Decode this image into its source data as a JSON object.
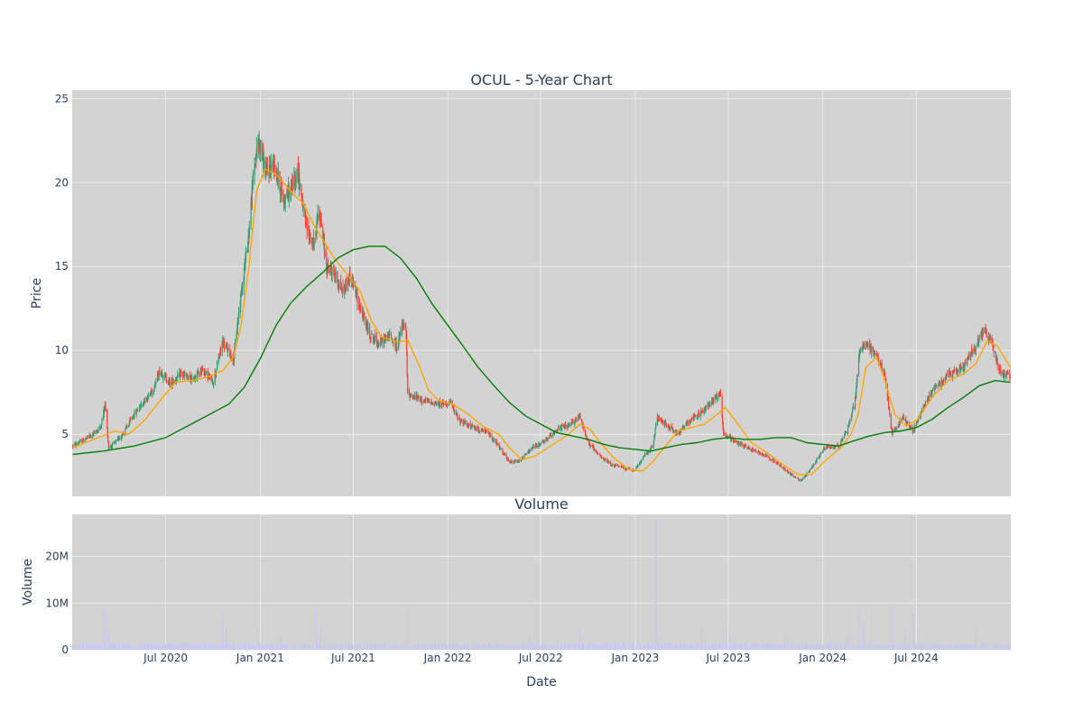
{
  "chart_data": [
    {
      "type": "candlestick",
      "title": "OCUL - 5-Year Chart",
      "ylabel": "Price",
      "xlabel": "",
      "x_ticks": [
        "Jul 2020",
        "Jan 2021",
        "Jul 2021",
        "Jan 2022",
        "Jul 2022",
        "Jan 2023",
        "Jul 2023",
        "Jan 2024",
        "Jul 2024"
      ],
      "y_ticks": [
        "5",
        "10",
        "15",
        "20",
        "25"
      ],
      "ylim": [
        1.3,
        25.5
      ],
      "xlim": [
        "2020-01-01",
        "2025-01-01"
      ],
      "grid": true,
      "increasing_color": "#3d9970",
      "decreasing_color": "#ff4136",
      "price_path": [
        [
          "2020-01-02",
          4.3
        ],
        [
          "2020-01-20",
          4.6
        ],
        [
          "2020-02-10",
          5.0
        ],
        [
          "2020-02-25",
          5.4
        ],
        [
          "2020-03-05",
          6.8
        ],
        [
          "2020-03-12",
          4.2
        ],
        [
          "2020-03-25",
          4.5
        ],
        [
          "2020-04-10",
          5.1
        ],
        [
          "2020-05-01",
          6.2
        ],
        [
          "2020-05-20",
          7.0
        ],
        [
          "2020-06-05",
          7.6
        ],
        [
          "2020-06-20",
          8.8
        ],
        [
          "2020-07-10",
          8.0
        ],
        [
          "2020-08-01",
          8.6
        ],
        [
          "2020-08-20",
          8.2
        ],
        [
          "2020-09-10",
          8.9
        ],
        [
          "2020-10-01",
          8.1
        ],
        [
          "2020-10-20",
          10.5
        ],
        [
          "2020-11-10",
          9.5
        ],
        [
          "2020-11-25",
          13.5
        ],
        [
          "2020-12-10",
          17.0
        ],
        [
          "2020-12-20",
          21.0
        ],
        [
          "2020-12-30",
          22.5
        ],
        [
          "2021-01-12",
          20.5
        ],
        [
          "2021-01-28",
          21.2
        ],
        [
          "2021-02-15",
          19.0
        ],
        [
          "2021-03-01",
          19.5
        ],
        [
          "2021-03-15",
          20.8
        ],
        [
          "2021-03-30",
          17.5
        ],
        [
          "2021-04-15",
          16.2
        ],
        [
          "2021-04-25",
          18.5
        ],
        [
          "2021-05-10",
          15.0
        ],
        [
          "2021-05-25",
          14.6
        ],
        [
          "2021-06-10",
          13.5
        ],
        [
          "2021-06-25",
          14.5
        ],
        [
          "2021-07-15",
          12.5
        ],
        [
          "2021-08-01",
          11.0
        ],
        [
          "2021-08-20",
          10.4
        ],
        [
          "2021-09-10",
          10.9
        ],
        [
          "2021-09-25",
          10.2
        ],
        [
          "2021-10-05",
          11.6
        ],
        [
          "2021-10-12",
          11.0
        ],
        [
          "2021-10-15",
          7.4
        ],
        [
          "2021-11-15",
          7.0
        ],
        [
          "2021-12-15",
          6.8
        ],
        [
          "2022-01-05",
          6.9
        ],
        [
          "2022-01-25",
          5.8
        ],
        [
          "2022-02-20",
          5.4
        ],
        [
          "2022-03-20",
          5.1
        ],
        [
          "2022-04-10",
          4.3
        ],
        [
          "2022-05-01",
          3.3
        ],
        [
          "2022-05-20",
          3.4
        ],
        [
          "2022-06-15",
          4.2
        ],
        [
          "2022-07-10",
          4.6
        ],
        [
          "2022-08-01",
          5.3
        ],
        [
          "2022-08-25",
          5.5
        ],
        [
          "2022-09-15",
          6.1
        ],
        [
          "2022-10-01",
          4.5
        ],
        [
          "2022-10-20",
          3.8
        ],
        [
          "2022-11-15",
          3.2
        ],
        [
          "2022-12-10",
          3.0
        ],
        [
          "2022-12-30",
          2.8
        ],
        [
          "2023-01-20",
          3.8
        ],
        [
          "2023-02-05",
          4.3
        ],
        [
          "2023-02-12",
          6.0
        ],
        [
          "2023-03-05",
          5.5
        ],
        [
          "2023-03-25",
          5.0
        ],
        [
          "2023-04-15",
          5.8
        ],
        [
          "2023-05-10",
          6.3
        ],
        [
          "2023-06-05",
          7.2
        ],
        [
          "2023-06-15",
          7.5
        ],
        [
          "2023-06-22",
          5.0
        ],
        [
          "2023-07-20",
          4.5
        ],
        [
          "2023-08-15",
          4.1
        ],
        [
          "2023-09-15",
          3.7
        ],
        [
          "2023-10-15",
          3.0
        ],
        [
          "2023-11-05",
          2.5
        ],
        [
          "2023-11-20",
          2.2
        ],
        [
          "2023-12-10",
          3.0
        ],
        [
          "2024-01-05",
          4.2
        ],
        [
          "2024-02-01",
          4.3
        ],
        [
          "2024-02-20",
          5.5
        ],
        [
          "2024-03-05",
          7.2
        ],
        [
          "2024-03-12",
          10.0
        ],
        [
          "2024-03-25",
          10.5
        ],
        [
          "2024-04-15",
          9.6
        ],
        [
          "2024-05-01",
          8.5
        ],
        [
          "2024-05-15",
          5.0
        ],
        [
          "2024-06-05",
          6.0
        ],
        [
          "2024-06-25",
          5.2
        ],
        [
          "2024-07-15",
          6.6
        ],
        [
          "2024-08-05",
          7.8
        ],
        [
          "2024-09-01",
          8.5
        ],
        [
          "2024-10-01",
          9.0
        ],
        [
          "2024-10-25",
          10.3
        ],
        [
          "2024-11-10",
          11.2
        ],
        [
          "2024-11-25",
          10.5
        ],
        [
          "2024-12-10",
          8.8
        ],
        [
          "2024-12-31",
          8.4
        ]
      ],
      "ma_short": {
        "color": "orange",
        "values": [
          [
            "2020-01-02",
            4.2
          ],
          [
            "2020-02-20",
            4.8
          ],
          [
            "2020-03-25",
            5.2
          ],
          [
            "2020-04-20",
            5.0
          ],
          [
            "2020-05-20",
            5.8
          ],
          [
            "2020-06-20",
            7.0
          ],
          [
            "2020-07-20",
            8.1
          ],
          [
            "2020-08-20",
            8.2
          ],
          [
            "2020-09-20",
            8.4
          ],
          [
            "2020-10-20",
            8.8
          ],
          [
            "2020-11-10",
            9.6
          ],
          [
            "2020-11-25",
            11.5
          ],
          [
            "2020-12-10",
            15.0
          ],
          [
            "2020-12-25",
            19.5
          ],
          [
            "2021-01-10",
            20.8
          ],
          [
            "2021-02-01",
            20.5
          ],
          [
            "2021-02-20",
            19.8
          ],
          [
            "2021-03-10",
            19.2
          ],
          [
            "2021-03-25",
            18.8
          ],
          [
            "2021-04-15",
            17.5
          ],
          [
            "2021-05-05",
            16.5
          ],
          [
            "2021-05-25",
            15.5
          ],
          [
            "2021-06-20",
            14.5
          ],
          [
            "2021-07-15",
            13.5
          ],
          [
            "2021-08-05",
            11.8
          ],
          [
            "2021-08-25",
            10.8
          ],
          [
            "2021-09-25",
            10.5
          ],
          [
            "2021-10-15",
            10.6
          ],
          [
            "2021-11-05",
            9.2
          ],
          [
            "2021-11-25",
            7.6
          ],
          [
            "2021-12-15",
            7.0
          ],
          [
            "2022-01-10",
            6.8
          ],
          [
            "2022-02-10",
            6.2
          ],
          [
            "2022-03-10",
            5.5
          ],
          [
            "2022-04-10",
            5.0
          ],
          [
            "2022-05-01",
            4.2
          ],
          [
            "2022-05-25",
            3.5
          ],
          [
            "2022-06-20",
            3.7
          ],
          [
            "2022-07-20",
            4.3
          ],
          [
            "2022-08-20",
            4.9
          ],
          [
            "2022-09-15",
            5.6
          ],
          [
            "2022-10-05",
            5.3
          ],
          [
            "2022-10-25",
            4.5
          ],
          [
            "2022-11-20",
            3.6
          ],
          [
            "2022-12-20",
            2.9
          ],
          [
            "2023-01-15",
            2.8
          ],
          [
            "2023-02-05",
            3.4
          ],
          [
            "2023-03-01",
            4.3
          ],
          [
            "2023-03-25",
            5.2
          ],
          [
            "2023-04-20",
            5.4
          ],
          [
            "2023-05-15",
            5.6
          ],
          [
            "2023-06-10",
            6.2
          ],
          [
            "2023-06-25",
            6.6
          ],
          [
            "2023-07-20",
            5.6
          ],
          [
            "2023-08-15",
            4.5
          ],
          [
            "2023-09-15",
            3.9
          ],
          [
            "2023-10-15",
            3.2
          ],
          [
            "2023-11-15",
            2.6
          ],
          [
            "2023-12-10",
            2.6
          ],
          [
            "2024-01-05",
            3.4
          ],
          [
            "2024-02-05",
            4.2
          ],
          [
            "2024-02-25",
            5.0
          ],
          [
            "2024-03-10",
            6.2
          ],
          [
            "2024-03-25",
            9.0
          ],
          [
            "2024-04-15",
            9.6
          ],
          [
            "2024-05-01",
            8.2
          ],
          [
            "2024-05-20",
            6.2
          ],
          [
            "2024-06-10",
            5.5
          ],
          [
            "2024-07-01",
            5.8
          ],
          [
            "2024-08-01",
            7.2
          ],
          [
            "2024-09-01",
            8.2
          ],
          [
            "2024-10-01",
            8.6
          ],
          [
            "2024-10-25",
            9.2
          ],
          [
            "2024-11-15",
            10.5
          ],
          [
            "2024-12-05",
            10.3
          ],
          [
            "2024-12-31",
            9.0
          ]
        ]
      },
      "ma_long": {
        "color": "green",
        "values": [
          [
            "2020-01-02",
            3.8
          ],
          [
            "2020-03-01",
            4.0
          ],
          [
            "2020-05-01",
            4.3
          ],
          [
            "2020-07-01",
            4.8
          ],
          [
            "2020-09-01",
            5.8
          ],
          [
            "2020-11-01",
            6.8
          ],
          [
            "2020-12-01",
            7.8
          ],
          [
            "2021-01-01",
            9.5
          ],
          [
            "2021-02-01",
            11.5
          ],
          [
            "2021-03-01",
            12.8
          ],
          [
            "2021-04-01",
            13.8
          ],
          [
            "2021-05-01",
            14.6
          ],
          [
            "2021-06-01",
            15.5
          ],
          [
            "2021-07-01",
            16.0
          ],
          [
            "2021-08-01",
            16.2
          ],
          [
            "2021-09-01",
            16.2
          ],
          [
            "2021-10-01",
            15.5
          ],
          [
            "2021-11-01",
            14.3
          ],
          [
            "2021-12-01",
            12.8
          ],
          [
            "2022-01-01",
            11.5
          ],
          [
            "2022-02-01",
            10.2
          ],
          [
            "2022-03-01",
            9.0
          ],
          [
            "2022-04-01",
            7.9
          ],
          [
            "2022-05-01",
            6.9
          ],
          [
            "2022-06-01",
            6.1
          ],
          [
            "2022-07-01",
            5.6
          ],
          [
            "2022-08-01",
            5.1
          ],
          [
            "2022-09-01",
            4.9
          ],
          [
            "2022-10-01",
            4.7
          ],
          [
            "2022-11-01",
            4.4
          ],
          [
            "2022-12-01",
            4.2
          ],
          [
            "2023-01-01",
            4.1
          ],
          [
            "2023-02-01",
            4.0
          ],
          [
            "2023-03-01",
            4.2
          ],
          [
            "2023-04-01",
            4.4
          ],
          [
            "2023-05-01",
            4.5
          ],
          [
            "2023-06-01",
            4.7
          ],
          [
            "2023-07-01",
            4.8
          ],
          [
            "2023-08-01",
            4.7
          ],
          [
            "2023-09-01",
            4.7
          ],
          [
            "2023-10-01",
            4.8
          ],
          [
            "2023-11-01",
            4.8
          ],
          [
            "2023-12-01",
            4.5
          ],
          [
            "2024-01-01",
            4.4
          ],
          [
            "2024-02-01",
            4.3
          ],
          [
            "2024-03-01",
            4.6
          ],
          [
            "2024-04-01",
            4.9
          ],
          [
            "2024-05-01",
            5.1
          ],
          [
            "2024-06-01",
            5.2
          ],
          [
            "2024-07-01",
            5.4
          ],
          [
            "2024-08-01",
            5.9
          ],
          [
            "2024-09-01",
            6.6
          ],
          [
            "2024-10-01",
            7.2
          ],
          [
            "2024-11-01",
            7.9
          ],
          [
            "2024-12-01",
            8.2
          ],
          [
            "2024-12-31",
            8.1
          ]
        ]
      }
    },
    {
      "type": "bar",
      "title": "Volume",
      "ylabel": "Volume",
      "xlabel": "Date",
      "x_ticks": [
        "Jul 2020",
        "Jan 2021",
        "Jul 2021",
        "Jan 2022",
        "Jul 2022",
        "Jan 2023",
        "Jul 2023",
        "Jan 2024",
        "Jul 2024"
      ],
      "y_ticks": [
        "0",
        "10M",
        "20M"
      ],
      "ylim": [
        0,
        29000000
      ],
      "grid": true,
      "bar_color": "#c8c8f0",
      "baseline_volume": 900000,
      "spikes": [
        [
          "2020-03-05",
          9000000
        ],
        [
          "2020-03-12",
          4000000
        ],
        [
          "2020-05-10",
          3000000
        ],
        [
          "2020-07-05",
          1500000
        ],
        [
          "2020-09-05",
          3000000
        ],
        [
          "2020-10-20",
          7500000
        ],
        [
          "2020-10-28",
          5000000
        ],
        [
          "2020-12-10",
          2000000
        ],
        [
          "2020-12-28",
          3500000
        ],
        [
          "2021-02-10",
          3000000
        ],
        [
          "2021-04-20",
          9000000
        ],
        [
          "2021-04-28",
          4000000
        ],
        [
          "2021-06-10",
          2000000
        ],
        [
          "2021-10-15",
          8500000
        ],
        [
          "2021-11-05",
          2000000
        ],
        [
          "2022-03-10",
          1500000
        ],
        [
          "2022-06-10",
          3000000
        ],
        [
          "2022-09-15",
          4500000
        ],
        [
          "2022-10-05",
          2000000
        ],
        [
          "2022-12-10",
          1500000
        ],
        [
          "2023-02-10",
          28000000
        ],
        [
          "2023-02-15",
          3000000
        ],
        [
          "2023-04-01",
          2000000
        ],
        [
          "2023-05-10",
          5000000
        ],
        [
          "2023-06-22",
          5500000
        ],
        [
          "2023-07-05",
          3000000
        ],
        [
          "2023-10-20",
          3500000
        ],
        [
          "2023-12-10",
          5500000
        ],
        [
          "2024-01-15",
          2000000
        ],
        [
          "2024-02-20",
          3500000
        ],
        [
          "2024-03-12",
          10000000
        ],
        [
          "2024-03-20",
          6000000
        ],
        [
          "2024-04-05",
          9500000
        ],
        [
          "2024-05-15",
          9500000
        ],
        [
          "2024-05-25",
          5000000
        ],
        [
          "2024-06-10",
          4500000
        ],
        [
          "2024-06-25",
          7500000
        ],
        [
          "2024-07-05",
          5000000
        ],
        [
          "2024-07-20",
          2500000
        ],
        [
          "2024-10-05",
          3500000
        ],
        [
          "2024-10-25",
          4000000
        ],
        [
          "2024-11-15",
          2500000
        ]
      ]
    }
  ]
}
